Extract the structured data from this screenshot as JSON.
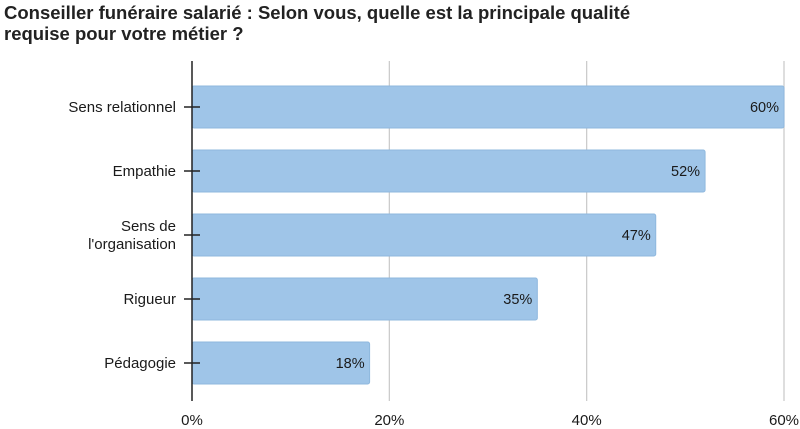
{
  "chart_data": {
    "type": "bar",
    "orientation": "horizontal",
    "title_lines": [
      "Conseiller funéraire salarié : Selon vous, quelle est la principale qualité",
      "requise pour votre métier ?"
    ],
    "categories": [
      [
        "Sens relationnel"
      ],
      [
        "Empathie"
      ],
      [
        "Sens de",
        "l'organisation"
      ],
      [
        "Rigueur"
      ],
      [
        "Pédagogie"
      ]
    ],
    "values": [
      60,
      52,
      47,
      35,
      18
    ],
    "value_labels": [
      "60%",
      "52%",
      "47%",
      "35%",
      "18%"
    ],
    "xlim": [
      0,
      60
    ],
    "x_ticks": [
      0,
      20,
      40,
      60
    ],
    "x_tick_labels": [
      "0%",
      "20%",
      "40%",
      "60%"
    ],
    "grid": "vertical",
    "colors": {
      "bar": "#9fc5e8",
      "bar_stroke": "#8fb8de",
      "grid": "#c8c8c8",
      "axis": "#222222",
      "text": "#1a1a1a"
    }
  }
}
